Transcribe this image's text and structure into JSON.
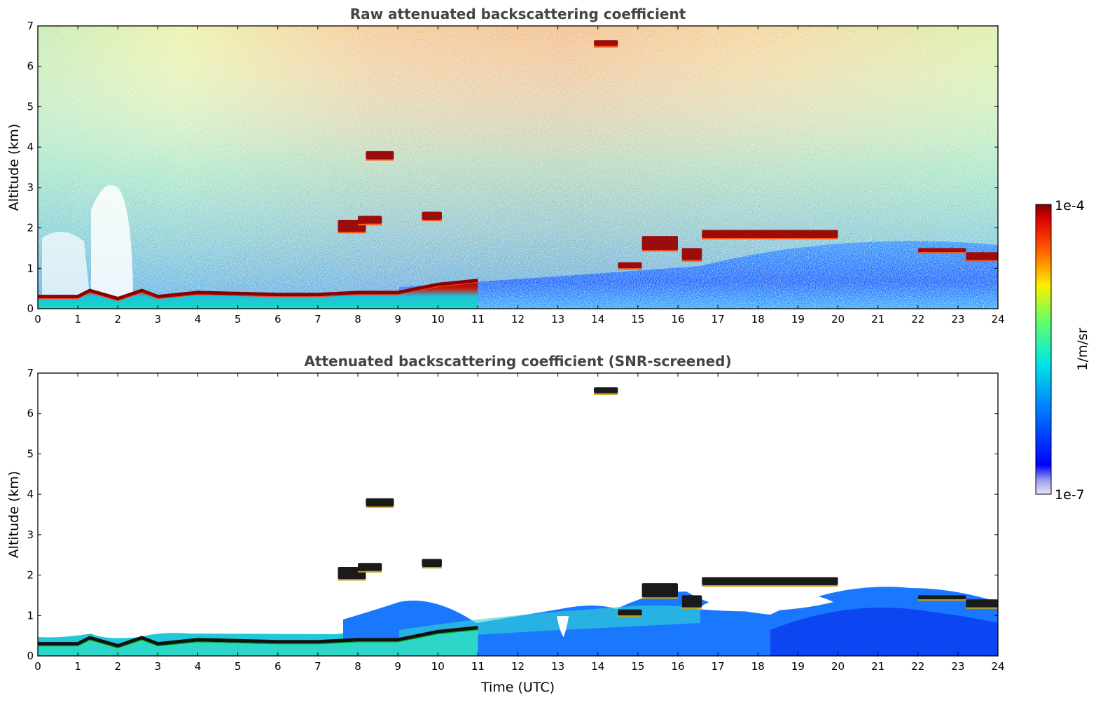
{
  "chart_data": [
    {
      "type": "heatmap",
      "title": "Raw attenuated backscattering coefficient",
      "xlabel": "",
      "ylabel": "Altitude (km)",
      "xlim": [
        0,
        24
      ],
      "ylim": [
        0,
        7
      ],
      "xticks": [
        0,
        1,
        2,
        3,
        4,
        5,
        6,
        7,
        8,
        9,
        10,
        11,
        12,
        13,
        14,
        15,
        16,
        17,
        18,
        19,
        20,
        21,
        22,
        23,
        24
      ],
      "yticks": [
        0,
        1,
        2,
        3,
        4,
        5,
        6,
        7
      ],
      "grid": false,
      "features": {
        "boundary_layer_top_km": [
          [
            0,
            0.3
          ],
          [
            1,
            0.3
          ],
          [
            1.3,
            0.45
          ],
          [
            2,
            0.25
          ],
          [
            2.6,
            0.45
          ],
          [
            3,
            0.3
          ],
          [
            4,
            0.4
          ],
          [
            6,
            0.35
          ],
          [
            7,
            0.35
          ],
          [
            8,
            0.4
          ],
          [
            9,
            0.4
          ],
          [
            10,
            0.6
          ],
          [
            11,
            0.7
          ]
        ],
        "cloud_layers": [
          {
            "x": [
              7.5,
              8.2
            ],
            "y": [
              1.9,
              2.2
            ]
          },
          {
            "x": [
              8.0,
              8.6
            ],
            "y": [
              2.1,
              2.3
            ]
          },
          {
            "x": [
              8.2,
              8.9
            ],
            "y": [
              3.7,
              3.9
            ]
          },
          {
            "x": [
              9.6,
              10.1
            ],
            "y": [
              2.2,
              2.4
            ]
          },
          {
            "x": [
              13.9,
              14.5
            ],
            "y": [
              6.5,
              6.65
            ]
          },
          {
            "x": [
              14.5,
              15.1
            ],
            "y": [
              1.0,
              1.15
            ]
          },
          {
            "x": [
              15.1,
              16.0
            ],
            "y": [
              1.45,
              1.8
            ]
          },
          {
            "x": [
              16.1,
              16.6
            ],
            "y": [
              1.2,
              1.5
            ]
          },
          {
            "x": [
              16.6,
              20.0
            ],
            "y": [
              1.75,
              1.95
            ]
          },
          {
            "x": [
              22.0,
              23.2
            ],
            "y": [
              1.4,
              1.5
            ]
          },
          {
            "x": [
              23.2,
              24.0
            ],
            "y": [
              1.2,
              1.4
            ]
          }
        ]
      }
    },
    {
      "type": "heatmap",
      "title": "Attenuated backscattering coefficient (SNR-screened)",
      "xlabel": "Time (UTC)",
      "ylabel": "Altitude (km)",
      "xlim": [
        0,
        24
      ],
      "ylim": [
        0,
        7
      ],
      "xticks": [
        0,
        1,
        2,
        3,
        4,
        5,
        6,
        7,
        8,
        9,
        10,
        11,
        12,
        13,
        14,
        15,
        16,
        17,
        18,
        19,
        20,
        21,
        22,
        23,
        24
      ],
      "yticks": [
        0,
        1,
        2,
        3,
        4,
        5,
        6,
        7
      ],
      "grid": false
    }
  ],
  "colorbar": {
    "label": "1/m/sr",
    "max_label": "1e-4",
    "min_label": "1e-7",
    "scale": "log",
    "colors": [
      "#e6e6fa",
      "#0000ff",
      "#00ffff",
      "#ffff00",
      "#ff0000",
      "#7f0000"
    ]
  }
}
